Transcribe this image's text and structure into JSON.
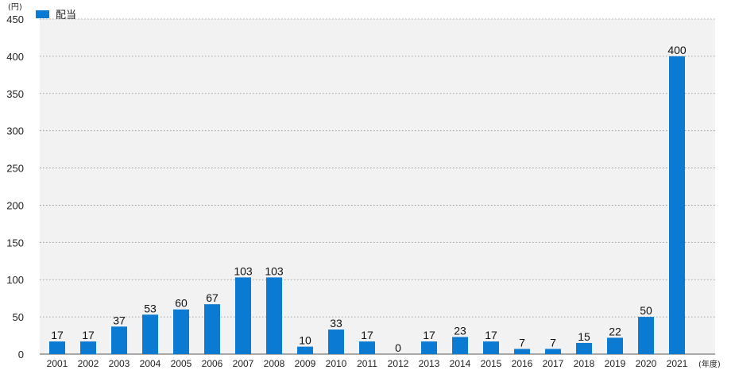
{
  "chart_data": {
    "type": "bar",
    "categories": [
      "2001",
      "2002",
      "2003",
      "2004",
      "2005",
      "2006",
      "2007",
      "2008",
      "2009",
      "2010",
      "2011",
      "2012",
      "2013",
      "2014",
      "2015",
      "2016",
      "2017",
      "2018",
      "2019",
      "2020",
      "2021"
    ],
    "series": [
      {
        "name": "配当",
        "values": [
          17,
          17,
          37,
          53,
          60,
          67,
          103,
          103,
          10,
          33,
          17,
          0,
          17,
          23,
          17,
          7,
          7,
          15,
          22,
          50,
          400
        ]
      }
    ],
    "data_labels": [
      "17",
      "17",
      "37",
      "53",
      "60",
      "67",
      "103",
      "103",
      "10",
      "33",
      "17",
      "0",
      "17",
      "23",
      "17",
      "7",
      "7",
      "15",
      "22",
      "50",
      "400"
    ],
    "y_ticks": [
      "0",
      "50",
      "100",
      "150",
      "200",
      "250",
      "300",
      "350",
      "400",
      "450"
    ],
    "ylim": [
      0,
      450
    ],
    "y_unit": "(円)",
    "x_unit": "(年度)",
    "grid": true,
    "legend_position": "top-left",
    "colors": {
      "bar": "#0a7ad3",
      "plot_bg": "#f2f2f2",
      "grid": "#888888"
    }
  }
}
